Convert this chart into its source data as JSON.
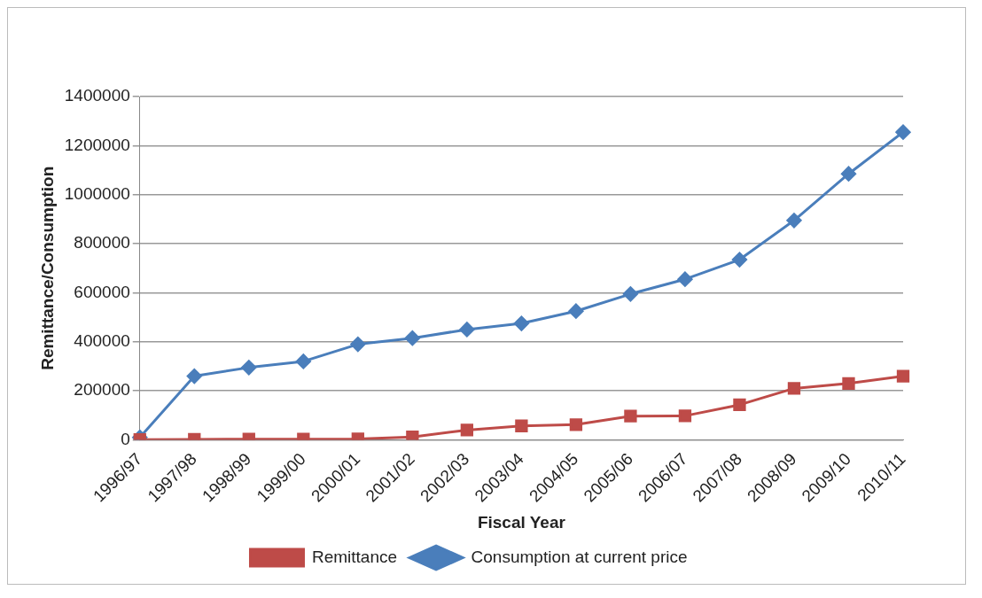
{
  "chart_data": {
    "type": "line",
    "xlabel": "Fiscal Year",
    "ylabel": "Remittance/Consumption",
    "categories": [
      "1996/97",
      "1997/98",
      "1998/99",
      "1999/00",
      "2000/01",
      "2001/02",
      "2002/03",
      "2003/04",
      "2004/05",
      "2005/06",
      "2006/07",
      "2007/08",
      "2008/09",
      "2009/10",
      "2010/11"
    ],
    "series": [
      {
        "name": "Consumption at current price",
        "color": "#4a7ebb",
        "marker": "diamond",
        "values": [
          10000,
          260000,
          295000,
          320000,
          390000,
          415000,
          450000,
          475000,
          525000,
          595000,
          655000,
          735000,
          895000,
          1085000,
          1255000
        ]
      },
      {
        "name": "Remittance",
        "color": "#be4b48",
        "marker": "square",
        "values": [
          1000,
          2000,
          3000,
          3000,
          4000,
          12000,
          40000,
          57000,
          62000,
          97000,
          98000,
          143000,
          210000,
          230000,
          260000
        ]
      }
    ],
    "ylim": [
      0,
      1400000
    ],
    "yticks": [
      0,
      200000,
      400000,
      600000,
      800000,
      1000000,
      1200000,
      1400000
    ],
    "grid": "y",
    "legend": "bottom"
  }
}
